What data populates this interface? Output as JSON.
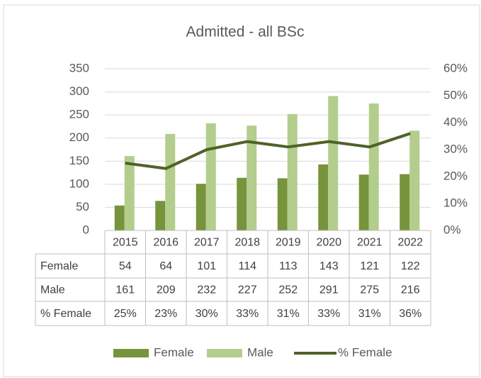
{
  "chart_data": {
    "type": "bar",
    "title": "Admitted - all BSc",
    "categories": [
      "2015",
      "2016",
      "2017",
      "2018",
      "2019",
      "2020",
      "2021",
      "2022"
    ],
    "series": [
      {
        "name": "Female",
        "color": "#77933c",
        "values": [
          54,
          64,
          101,
          114,
          113,
          143,
          121,
          122
        ]
      },
      {
        "name": "Male",
        "color": "#b3cd8d",
        "values": [
          161,
          209,
          232,
          227,
          252,
          291,
          275,
          216
        ]
      },
      {
        "name": "% Female",
        "type": "line",
        "axis": "y2",
        "color": "#4f6228",
        "values": [
          25,
          23,
          30,
          33,
          31,
          33,
          31,
          36
        ],
        "value_labels": [
          "25%",
          "23%",
          "30%",
          "33%",
          "31%",
          "33%",
          "31%",
          "36%"
        ]
      }
    ],
    "ylim": [
      0,
      350
    ],
    "yticks": [
      0,
      50,
      100,
      150,
      200,
      250,
      300,
      350
    ],
    "y2lim": [
      0,
      60
    ],
    "y2ticks": [
      {
        "value": 0,
        "label": "0%"
      },
      {
        "value": 10,
        "label": "10%"
      },
      {
        "value": 20,
        "label": "20%"
      },
      {
        "value": 30,
        "label": "30%"
      },
      {
        "value": 40,
        "label": "40%"
      },
      {
        "value": 50,
        "label": "50%"
      },
      {
        "value": 60,
        "label": "60%"
      }
    ],
    "grid": true,
    "legend": "bottom",
    "data_table": true
  }
}
